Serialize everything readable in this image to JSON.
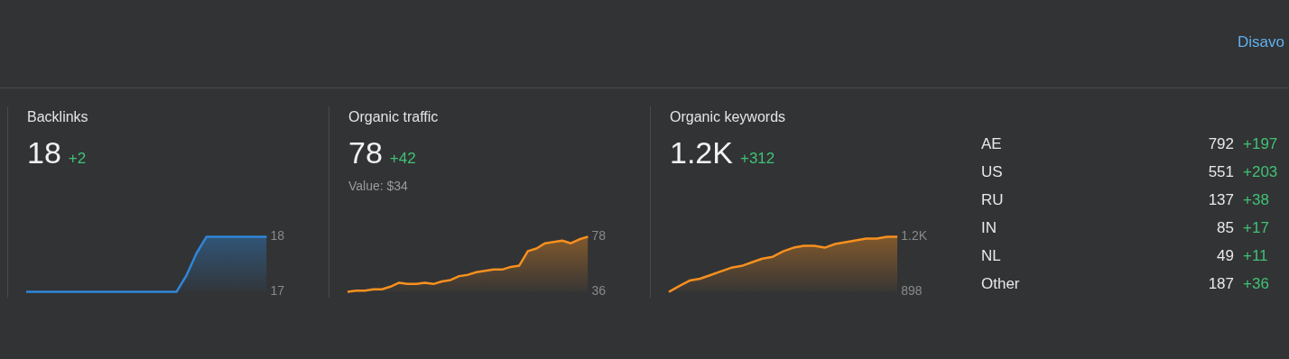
{
  "chart_data": [
    {
      "type": "area",
      "title": "Backlinks",
      "subtitle": "18",
      "annotations": [
        "+2"
      ],
      "color": "#2f86d9",
      "categories": [
        null,
        null,
        null,
        null,
        null,
        null,
        null,
        null,
        null,
        null,
        null,
        null,
        null,
        null,
        null,
        null,
        null,
        null,
        null,
        null,
        null,
        null,
        null,
        null,
        null
      ],
      "values": [
        17,
        17,
        17,
        17,
        17,
        17,
        17,
        17,
        17,
        17,
        17,
        17,
        17,
        17,
        17,
        17,
        17.3,
        17.7,
        18,
        18,
        18,
        18,
        18,
        18,
        18
      ],
      "ylim": [
        17,
        18
      ],
      "yticks": [
        17,
        18
      ],
      "tick_labels": "y"
    },
    {
      "type": "area",
      "title": "Organic traffic",
      "subtitle": "78",
      "annotations": [
        "+42",
        "Value: $34"
      ],
      "color": "#f7901e",
      "categories": [
        null,
        null,
        null,
        null,
        null,
        null,
        null,
        null,
        null,
        null,
        null,
        null,
        null,
        null,
        null,
        null,
        null,
        null,
        null,
        null,
        null,
        null,
        null,
        null,
        null,
        null,
        null,
        null,
        null
      ],
      "values": [
        36,
        37,
        37,
        38,
        38,
        40,
        43,
        42,
        42,
        43,
        42,
        44,
        45,
        48,
        49,
        51,
        52,
        53,
        53,
        55,
        56,
        67,
        69,
        73,
        74,
        75,
        73,
        76,
        78
      ],
      "ylim": [
        36,
        78
      ],
      "yticks": [
        36,
        78
      ],
      "tick_labels": "y"
    },
    {
      "type": "area",
      "title": "Organic keywords",
      "subtitle": "1.2K",
      "annotations": [
        "+312"
      ],
      "color": "#f7901e",
      "categories": [
        null,
        null,
        null,
        null,
        null,
        null,
        null,
        null,
        null,
        null,
        null,
        null,
        null,
        null,
        null,
        null,
        null,
        null,
        null,
        null,
        null,
        null,
        null
      ],
      "values": [
        898,
        930,
        960,
        970,
        990,
        1010,
        1030,
        1040,
        1060,
        1080,
        1090,
        1120,
        1140,
        1150,
        1150,
        1140,
        1160,
        1170,
        1180,
        1190,
        1190,
        1200,
        1200
      ],
      "ylim": [
        898,
        1200
      ],
      "yticks": [
        898,
        {
          "value": 1200,
          "label": "1.2K"
        }
      ],
      "tick_labels": "y"
    },
    {
      "type": "other",
      "categories": [
        "AE",
        "US",
        "RU",
        "IN",
        "NL",
        "Other"
      ],
      "values": [
        792,
        551,
        137,
        85,
        49,
        187
      ],
      "data_labels": true,
      "annotations": [
        {
          "text": "+197",
          "y": "AE"
        },
        {
          "text": "+203",
          "y": "US"
        },
        {
          "text": "+38",
          "y": "RU"
        },
        {
          "text": "+17",
          "y": "IN"
        },
        {
          "text": "+11",
          "y": "NL"
        },
        {
          "text": "+36",
          "y": "Other"
        },
        "Disavo"
      ]
    }
  ]
}
